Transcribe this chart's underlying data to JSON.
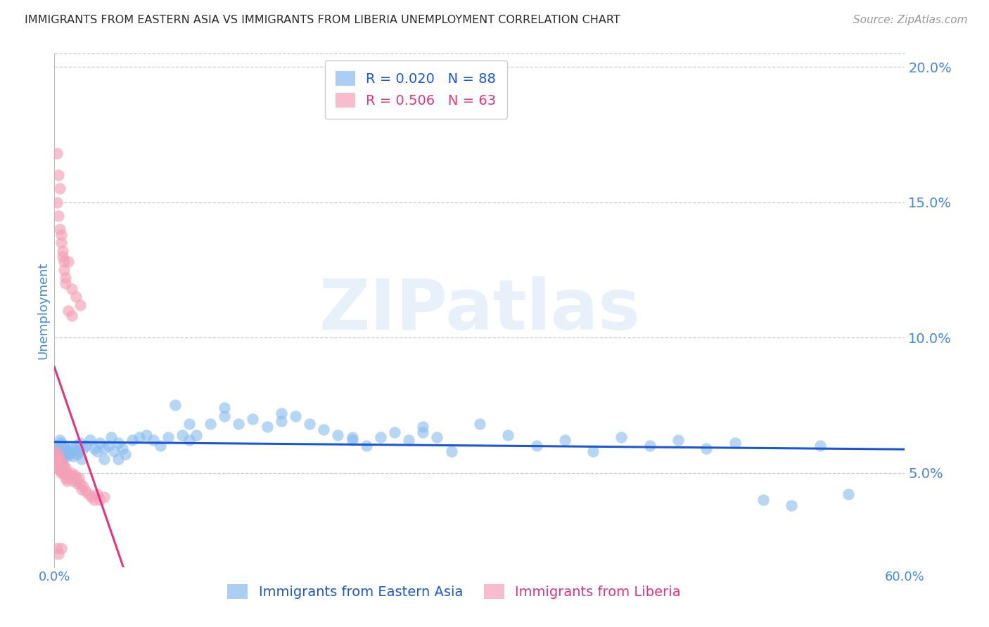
{
  "title": "IMMIGRANTS FROM EASTERN ASIA VS IMMIGRANTS FROM LIBERIA UNEMPLOYMENT CORRELATION CHART",
  "source": "Source: ZipAtlas.com",
  "xlabel_blue": "Immigrants from Eastern Asia",
  "xlabel_pink": "Immigrants from Liberia",
  "ylabel": "Unemployment",
  "watermark": "ZIPatlas",
  "blue_R": 0.02,
  "blue_N": 88,
  "pink_R": 0.506,
  "pink_N": 63,
  "blue_color": "#88bbee",
  "pink_color": "#f4a0b8",
  "blue_line_color": "#1a56db",
  "pink_line_color": "#e8327c",
  "grid_color": "#cccccc",
  "background_color": "#ffffff",
  "tick_color": "#4488dd",
  "xlim_min": 0.0,
  "xlim_max": 0.6,
  "ylim_min": 0.015,
  "ylim_max": 0.205,
  "yticks": [
    0.05,
    0.1,
    0.15,
    0.2
  ],
  "ytick_labels": [
    "5.0%",
    "10.0%",
    "15.0%",
    "20.0%"
  ],
  "xticks": [
    0.0,
    0.1,
    0.2,
    0.3,
    0.4,
    0.5,
    0.6
  ],
  "xtick_labels": [
    "0.0%",
    "",
    "",
    "",
    "",
    "",
    "60.0%"
  ],
  "blue_scatter_x": [
    0.001,
    0.001,
    0.002,
    0.002,
    0.003,
    0.003,
    0.004,
    0.004,
    0.005,
    0.005,
    0.006,
    0.006,
    0.007,
    0.007,
    0.008,
    0.009,
    0.01,
    0.011,
    0.012,
    0.013,
    0.014,
    0.015,
    0.016,
    0.017,
    0.018,
    0.019,
    0.02,
    0.022,
    0.025,
    0.028,
    0.03,
    0.032,
    0.035,
    0.038,
    0.04,
    0.042,
    0.045,
    0.048,
    0.05,
    0.055,
    0.06,
    0.065,
    0.07,
    0.075,
    0.08,
    0.09,
    0.095,
    0.1,
    0.11,
    0.12,
    0.13,
    0.14,
    0.15,
    0.16,
    0.17,
    0.18,
    0.19,
    0.2,
    0.21,
    0.22,
    0.23,
    0.24,
    0.25,
    0.26,
    0.27,
    0.28,
    0.3,
    0.32,
    0.34,
    0.36,
    0.38,
    0.4,
    0.42,
    0.44,
    0.46,
    0.48,
    0.5,
    0.52,
    0.54,
    0.56,
    0.035,
    0.045,
    0.085,
    0.095,
    0.12,
    0.16,
    0.21,
    0.26
  ],
  "blue_scatter_y": [
    0.055,
    0.058,
    0.056,
    0.06,
    0.057,
    0.059,
    0.054,
    0.062,
    0.056,
    0.061,
    0.055,
    0.058,
    0.057,
    0.06,
    0.059,
    0.056,
    0.058,
    0.057,
    0.059,
    0.056,
    0.058,
    0.06,
    0.057,
    0.058,
    0.061,
    0.055,
    0.059,
    0.06,
    0.062,
    0.059,
    0.058,
    0.061,
    0.059,
    0.06,
    0.063,
    0.058,
    0.061,
    0.059,
    0.057,
    0.062,
    0.063,
    0.064,
    0.062,
    0.06,
    0.063,
    0.064,
    0.062,
    0.064,
    0.068,
    0.071,
    0.068,
    0.07,
    0.067,
    0.069,
    0.071,
    0.068,
    0.066,
    0.064,
    0.062,
    0.06,
    0.063,
    0.065,
    0.062,
    0.065,
    0.063,
    0.058,
    0.068,
    0.064,
    0.06,
    0.062,
    0.058,
    0.063,
    0.06,
    0.062,
    0.059,
    0.061,
    0.04,
    0.038,
    0.06,
    0.042,
    0.055,
    0.055,
    0.075,
    0.068,
    0.074,
    0.072,
    0.063,
    0.067
  ],
  "pink_scatter_x": [
    0.001,
    0.001,
    0.001,
    0.002,
    0.002,
    0.002,
    0.003,
    0.003,
    0.003,
    0.004,
    0.004,
    0.005,
    0.005,
    0.005,
    0.006,
    0.006,
    0.007,
    0.007,
    0.008,
    0.008,
    0.009,
    0.009,
    0.01,
    0.011,
    0.012,
    0.013,
    0.014,
    0.015,
    0.016,
    0.017,
    0.018,
    0.019,
    0.02,
    0.022,
    0.024,
    0.026,
    0.028,
    0.03,
    0.032,
    0.035,
    0.002,
    0.003,
    0.004,
    0.005,
    0.006,
    0.007,
    0.008,
    0.01,
    0.012,
    0.015,
    0.018,
    0.002,
    0.003,
    0.004,
    0.005,
    0.006,
    0.007,
    0.008,
    0.01,
    0.012,
    0.002,
    0.003,
    0.005
  ],
  "pink_scatter_y": [
    0.055,
    0.052,
    0.058,
    0.053,
    0.055,
    0.057,
    0.052,
    0.054,
    0.056,
    0.053,
    0.051,
    0.052,
    0.05,
    0.054,
    0.051,
    0.053,
    0.052,
    0.05,
    0.052,
    0.048,
    0.05,
    0.047,
    0.048,
    0.049,
    0.05,
    0.047,
    0.049,
    0.048,
    0.046,
    0.048,
    0.046,
    0.044,
    0.045,
    0.043,
    0.042,
    0.041,
    0.04,
    0.042,
    0.04,
    0.041,
    0.15,
    0.145,
    0.14,
    0.135,
    0.13,
    0.125,
    0.122,
    0.128,
    0.118,
    0.115,
    0.112,
    0.168,
    0.16,
    0.155,
    0.138,
    0.132,
    0.128,
    0.12,
    0.11,
    0.108,
    0.022,
    0.02,
    0.022
  ]
}
